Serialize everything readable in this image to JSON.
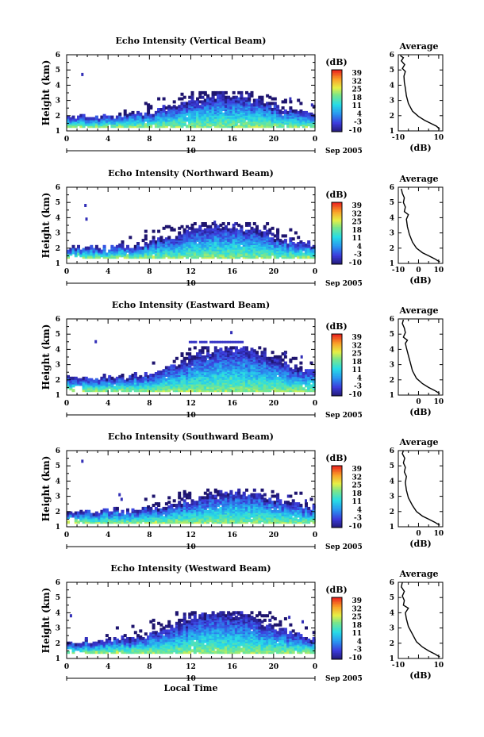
{
  "chart_data": [
    {
      "type": "heatmap",
      "title": "Echo Intensity (Vertical Beam)",
      "ylabel": "Height (km)",
      "y_ticks": [
        "1",
        "2",
        "3",
        "4",
        "5",
        "6"
      ],
      "ylim": [
        1,
        6
      ],
      "x_ticks": [
        "0",
        "4",
        "8",
        "12",
        "16",
        "20",
        "0"
      ],
      "xlim": [
        0,
        24
      ],
      "date_label": "10",
      "date_suffix": "Sep 2005",
      "colorbar": {
        "label": "(dB)",
        "ticks": [
          "39",
          "32",
          "25",
          "18",
          "11",
          "4",
          "-3",
          "-10"
        ],
        "range": [
          -10,
          39
        ]
      },
      "echo": {
        "base": 1.2,
        "top_min": 1.8,
        "top_max": 3.1,
        "peak_hour": 15,
        "noise_top": 2.9,
        "isolated": [
          [
            1.4,
            4.6
          ],
          [
            21.5,
            3.0
          ],
          [
            23.6,
            2.6
          ]
        ]
      },
      "average": {
        "title": "Average",
        "xlabel": "(dB)",
        "x_ticks": [
          "-10",
          "10"
        ],
        "xlim": [
          -10,
          12
        ],
        "ylim": [
          1,
          6
        ],
        "profile": [
          [
            10.5,
            1.1
          ],
          [
            9,
            1.3
          ],
          [
            6,
            1.5
          ],
          [
            3,
            1.7
          ],
          [
            0,
            1.95
          ],
          [
            -3,
            2.3
          ],
          [
            -5,
            2.8
          ],
          [
            -6,
            3.3
          ],
          [
            -6.5,
            3.8
          ],
          [
            -7,
            4.2
          ],
          [
            -7.2,
            4.6
          ],
          [
            -6.5,
            4.9
          ],
          [
            -8,
            5.1
          ],
          [
            -6.8,
            5.35
          ],
          [
            -8.5,
            5.6
          ],
          [
            -7.5,
            5.8
          ],
          [
            -9,
            5.95
          ]
        ]
      }
    },
    {
      "type": "heatmap",
      "title": "Echo Intensity (Northward Beam)",
      "ylabel": "Height (km)",
      "y_ticks": [
        "1",
        "2",
        "3",
        "4",
        "5",
        "6"
      ],
      "ylim": [
        1,
        6
      ],
      "x_ticks": [
        "0",
        "4",
        "8",
        "12",
        "16",
        "20",
        "0"
      ],
      "xlim": [
        0,
        24
      ],
      "date_label": "10",
      "date_suffix": "Sep 2005",
      "colorbar": {
        "label": "(dB)",
        "ticks": [
          "39",
          "32",
          "25",
          "18",
          "11",
          "4",
          "-3",
          "-10"
        ],
        "range": [
          -10,
          39
        ]
      },
      "echo": {
        "base": 1.3,
        "top_min": 1.9,
        "top_max": 3.3,
        "peak_hour": 15,
        "noise_top": 3.0,
        "isolated": [
          [
            1.7,
            4.7
          ],
          [
            1.8,
            3.8
          ],
          [
            14.2,
            3.6
          ],
          [
            16.2,
            3.5
          ]
        ]
      },
      "average": {
        "title": "Average",
        "xlabel": "(dB)",
        "x_ticks": [
          "-10",
          "0",
          "10"
        ],
        "xlim": [
          -10,
          12
        ],
        "ylim": [
          1,
          6
        ],
        "profile": [
          [
            10.5,
            1.1
          ],
          [
            8,
            1.3
          ],
          [
            5,
            1.5
          ],
          [
            2,
            1.7
          ],
          [
            -1,
            2.0
          ],
          [
            -3,
            2.4
          ],
          [
            -4.5,
            2.9
          ],
          [
            -5.5,
            3.4
          ],
          [
            -6,
            3.9
          ],
          [
            -5,
            4.2
          ],
          [
            -7,
            4.4
          ],
          [
            -6.5,
            4.7
          ],
          [
            -7.5,
            5.0
          ],
          [
            -7,
            5.3
          ],
          [
            -8,
            5.6
          ],
          [
            -8.5,
            5.9
          ]
        ]
      }
    },
    {
      "type": "heatmap",
      "title": "Echo Intensity (Eastward Beam)",
      "ylabel": "Height (km)",
      "y_ticks": [
        "1",
        "2",
        "3",
        "4",
        "5",
        "6"
      ],
      "ylim": [
        1,
        6
      ],
      "x_ticks": [
        "0",
        "4",
        "8",
        "12",
        "16",
        "20",
        "0"
      ],
      "xlim": [
        0,
        24
      ],
      "date_label": "10",
      "date_suffix": "Sep 2005",
      "colorbar": {
        "label": "(dB)",
        "ticks": [
          "39",
          "32",
          "25",
          "18",
          "11",
          "4",
          "-3",
          "-10"
        ],
        "range": [
          -10,
          39
        ]
      },
      "echo": {
        "base": 1.2,
        "top_min": 2.0,
        "top_max": 3.9,
        "peak_hour": 16,
        "noise_top": 3.5,
        "layer": [
          11.8,
          17.0,
          4.4
        ],
        "isolated": [
          [
            2.7,
            4.4
          ],
          [
            15.8,
            5.0
          ],
          [
            21.0,
            3.6
          ],
          [
            22.6,
            3.4
          ]
        ]
      },
      "average": {
        "title": "Average",
        "xlabel": "(dB)",
        "x_ticks": [
          "0",
          "10"
        ],
        "xlim": [
          -10,
          12
        ],
        "ylim": [
          1,
          6
        ],
        "profile": [
          [
            10.5,
            1.1
          ],
          [
            8,
            1.3
          ],
          [
            5,
            1.5
          ],
          [
            2,
            1.75
          ],
          [
            -1,
            2.1
          ],
          [
            -3,
            2.6
          ],
          [
            -4,
            3.1
          ],
          [
            -5,
            3.6
          ],
          [
            -6,
            4.1
          ],
          [
            -6.5,
            4.4
          ],
          [
            -5.5,
            4.6
          ],
          [
            -7.5,
            4.8
          ],
          [
            -6.5,
            5.1
          ],
          [
            -7,
            5.4
          ],
          [
            -8,
            5.7
          ],
          [
            -7.5,
            5.95
          ]
        ]
      }
    },
    {
      "type": "heatmap",
      "title": "Echo Intensity (Southward Beam)",
      "ylabel": "Height (km)",
      "y_ticks": [
        "1",
        "2",
        "3",
        "4",
        "5",
        "6"
      ],
      "ylim": [
        1,
        6
      ],
      "x_ticks": [
        "0",
        "4",
        "8",
        "12",
        "16",
        "20",
        "0"
      ],
      "xlim": [
        0,
        24
      ],
      "date_label": "10",
      "date_suffix": "Sep 2005",
      "colorbar": {
        "label": "(dB)",
        "ticks": [
          "39",
          "32",
          "25",
          "18",
          "11",
          "4",
          "-3",
          "-10"
        ],
        "range": [
          -10,
          39
        ]
      },
      "echo": {
        "base": 1.2,
        "top_min": 1.9,
        "top_max": 3.1,
        "peak_hour": 16,
        "noise_top": 2.8,
        "isolated": [
          [
            1.4,
            5.2
          ],
          [
            5.0,
            3.0
          ],
          [
            5.2,
            2.7
          ],
          [
            21.3,
            2.9
          ],
          [
            23.0,
            2.6
          ]
        ]
      },
      "average": {
        "title": "Average",
        "xlabel": "(dB)",
        "x_ticks": [
          "0",
          "10"
        ],
        "xlim": [
          -10,
          12
        ],
        "ylim": [
          1,
          6
        ],
        "profile": [
          [
            10.5,
            1.1
          ],
          [
            8,
            1.3
          ],
          [
            5,
            1.5
          ],
          [
            2,
            1.7
          ],
          [
            -1,
            2.0
          ],
          [
            -3,
            2.4
          ],
          [
            -5,
            2.9
          ],
          [
            -6,
            3.4
          ],
          [
            -6.5,
            3.9
          ],
          [
            -6,
            4.3
          ],
          [
            -7,
            4.6
          ],
          [
            -6.5,
            4.9
          ],
          [
            -7.5,
            5.2
          ],
          [
            -6.8,
            5.5
          ],
          [
            -8,
            5.8
          ],
          [
            -7.5,
            6.0
          ]
        ]
      }
    },
    {
      "type": "heatmap",
      "title": "Echo Intensity (Westward Beam)",
      "ylabel": "Height (km)",
      "y_ticks": [
        "1",
        "2",
        "3",
        "4",
        "5",
        "6"
      ],
      "ylim": [
        1,
        6
      ],
      "x_ticks": [
        "0",
        "4",
        "8",
        "12",
        "16",
        "20",
        "0"
      ],
      "xlim": [
        0,
        24
      ],
      "date_label": "10",
      "date_suffix": "Sep 2005",
      "xlabel": "Local Time",
      "colorbar": {
        "label": "(dB)",
        "ticks": [
          "39",
          "32",
          "25",
          "18",
          "11",
          "4",
          "-3",
          "-10"
        ],
        "range": [
          -10,
          39
        ]
      },
      "echo": {
        "base": 1.3,
        "top_min": 2.0,
        "top_max": 3.8,
        "peak_hour": 15,
        "noise_top": 3.4,
        "isolated": [
          [
            0.3,
            3.7
          ],
          [
            21.4,
            3.6
          ],
          [
            22.7,
            3.3
          ]
        ]
      },
      "average": {
        "title": "Average",
        "xlabel": "(dB)",
        "x_ticks": [
          "-10",
          "10"
        ],
        "xlim": [
          -10,
          12
        ],
        "ylim": [
          1,
          6
        ],
        "profile": [
          [
            10.5,
            1.1
          ],
          [
            8,
            1.3
          ],
          [
            5,
            1.5
          ],
          [
            2,
            1.75
          ],
          [
            -1,
            2.1
          ],
          [
            -3,
            2.6
          ],
          [
            -5,
            3.1
          ],
          [
            -6,
            3.6
          ],
          [
            -6.5,
            4.0
          ],
          [
            -5,
            4.3
          ],
          [
            -7.5,
            4.5
          ],
          [
            -7,
            4.8
          ],
          [
            -8,
            5.1
          ],
          [
            -7,
            5.4
          ],
          [
            -8.5,
            5.7
          ],
          [
            -8,
            6.0
          ]
        ]
      }
    }
  ]
}
